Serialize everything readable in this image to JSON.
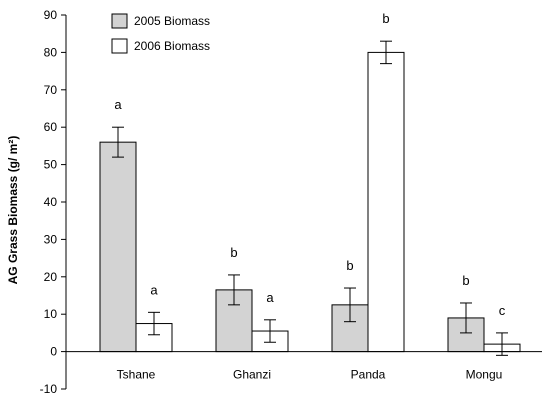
{
  "chart_data": {
    "type": "bar",
    "categories": [
      "Tshane",
      "Ghanzi",
      "Panda",
      "Mongu"
    ],
    "ylabel": "AG Grass Biomass (g/ m²)",
    "xlabel": "",
    "ylim": [
      -10,
      90
    ],
    "yticks": [
      -10,
      0,
      10,
      20,
      30,
      40,
      50,
      60,
      70,
      80,
      90
    ],
    "grid": false,
    "legend_position": "top-left",
    "series": [
      {
        "name": "2005 Biomass",
        "color": "#d3d3d3",
        "values": [
          56,
          16.5,
          12.5,
          9
        ],
        "errors": [
          4,
          4,
          4.5,
          4
        ],
        "labels": [
          "a",
          "b",
          "b",
          "b"
        ]
      },
      {
        "name": "2006 Biomass",
        "color": "#ffffff",
        "values": [
          7.5,
          5.5,
          80,
          2
        ],
        "errors": [
          3,
          3,
          3,
          3
        ],
        "labels": [
          "a",
          "a",
          "b",
          "c"
        ]
      }
    ]
  }
}
